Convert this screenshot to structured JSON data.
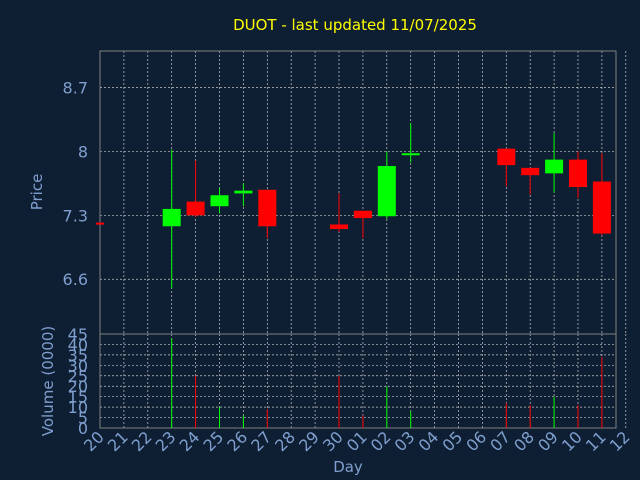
{
  "chart_data": {
    "type": "candlestick",
    "title": "DUOT - last updated 11/07/2025",
    "xlabel": "Day",
    "x_tick_labels": [
      "20",
      "21",
      "22",
      "23",
      "24",
      "25",
      "26",
      "27",
      "28",
      "29",
      "30",
      "01",
      "02",
      "03",
      "04",
      "05",
      "06",
      "07",
      "08",
      "09",
      "10",
      "11",
      "12"
    ],
    "price_panel": {
      "ylabel": "Price",
      "y_ticks": [
        "6.6",
        "7.3",
        "8",
        "8.7"
      ],
      "ylim": [
        6.0,
        9.1
      ],
      "candles": [
        {
          "day": "20",
          "open": 7.22,
          "high": 7.22,
          "low": 7.21,
          "close": 7.21
        },
        {
          "day": "23",
          "open": 7.18,
          "high": 8.02,
          "low": 6.5,
          "close": 7.37
        },
        {
          "day": "24",
          "open": 7.45,
          "high": 7.9,
          "low": 7.28,
          "close": 7.3
        },
        {
          "day": "25",
          "open": 7.4,
          "high": 7.6,
          "low": 7.32,
          "close": 7.52
        },
        {
          "day": "26",
          "open": 7.54,
          "high": 7.65,
          "low": 7.4,
          "close": 7.57
        },
        {
          "day": "27",
          "open": 7.58,
          "high": 7.58,
          "low": 7.05,
          "close": 7.18
        },
        {
          "day": "30",
          "open": 7.2,
          "high": 7.54,
          "low": 7.12,
          "close": 7.15
        },
        {
          "day": "01",
          "open": 7.35,
          "high": 7.35,
          "low": 7.05,
          "close": 7.27
        },
        {
          "day": "02",
          "open": 7.29,
          "high": 8.0,
          "low": 7.26,
          "close": 7.84
        },
        {
          "day": "03",
          "open": 7.96,
          "high": 8.31,
          "low": 7.88,
          "close": 7.98
        },
        {
          "day": "07",
          "open": 8.03,
          "high": 8.03,
          "low": 7.62,
          "close": 7.85
        },
        {
          "day": "08",
          "open": 7.82,
          "high": 7.82,
          "low": 7.53,
          "close": 7.74
        },
        {
          "day": "09",
          "open": 7.76,
          "high": 8.2,
          "low": 7.55,
          "close": 7.91
        },
        {
          "day": "10",
          "open": 7.91,
          "high": 8.0,
          "low": 7.49,
          "close": 7.61
        },
        {
          "day": "11",
          "open": 7.67,
          "high": 7.98,
          "low": 7.08,
          "close": 7.1
        }
      ]
    },
    "volume_panel": {
      "ylabel": "Volume (0000)",
      "y_ticks": [
        "0",
        "5",
        "10",
        "15",
        "20",
        "25",
        "30",
        "35",
        "40",
        "45"
      ],
      "ylim": [
        0,
        45
      ],
      "bars": [
        {
          "day": "23",
          "value": 43,
          "direction": "up"
        },
        {
          "day": "24",
          "value": 25,
          "direction": "down"
        },
        {
          "day": "25",
          "value": 10,
          "direction": "up"
        },
        {
          "day": "26",
          "value": 6,
          "direction": "up"
        },
        {
          "day": "27",
          "value": 9,
          "direction": "down"
        },
        {
          "day": "30",
          "value": 25,
          "direction": "down"
        },
        {
          "day": "01",
          "value": 6,
          "direction": "down"
        },
        {
          "day": "02",
          "value": 20,
          "direction": "up"
        },
        {
          "day": "03",
          "value": 8,
          "direction": "up"
        },
        {
          "day": "07",
          "value": 12,
          "direction": "down"
        },
        {
          "day": "08",
          "value": 11,
          "direction": "down"
        },
        {
          "day": "09",
          "value": 15,
          "direction": "up"
        },
        {
          "day": "10",
          "value": 11,
          "direction": "down"
        },
        {
          "day": "11",
          "value": 34,
          "direction": "down"
        }
      ]
    },
    "grid": true,
    "colors": {
      "background": "#0f1f33",
      "title": "#ffff00",
      "axis_text": "#7f9fcf",
      "grid": "#c8c8c8",
      "frame": "#7f7f7f",
      "up": "#00ff00",
      "down": "#ff0000"
    }
  }
}
